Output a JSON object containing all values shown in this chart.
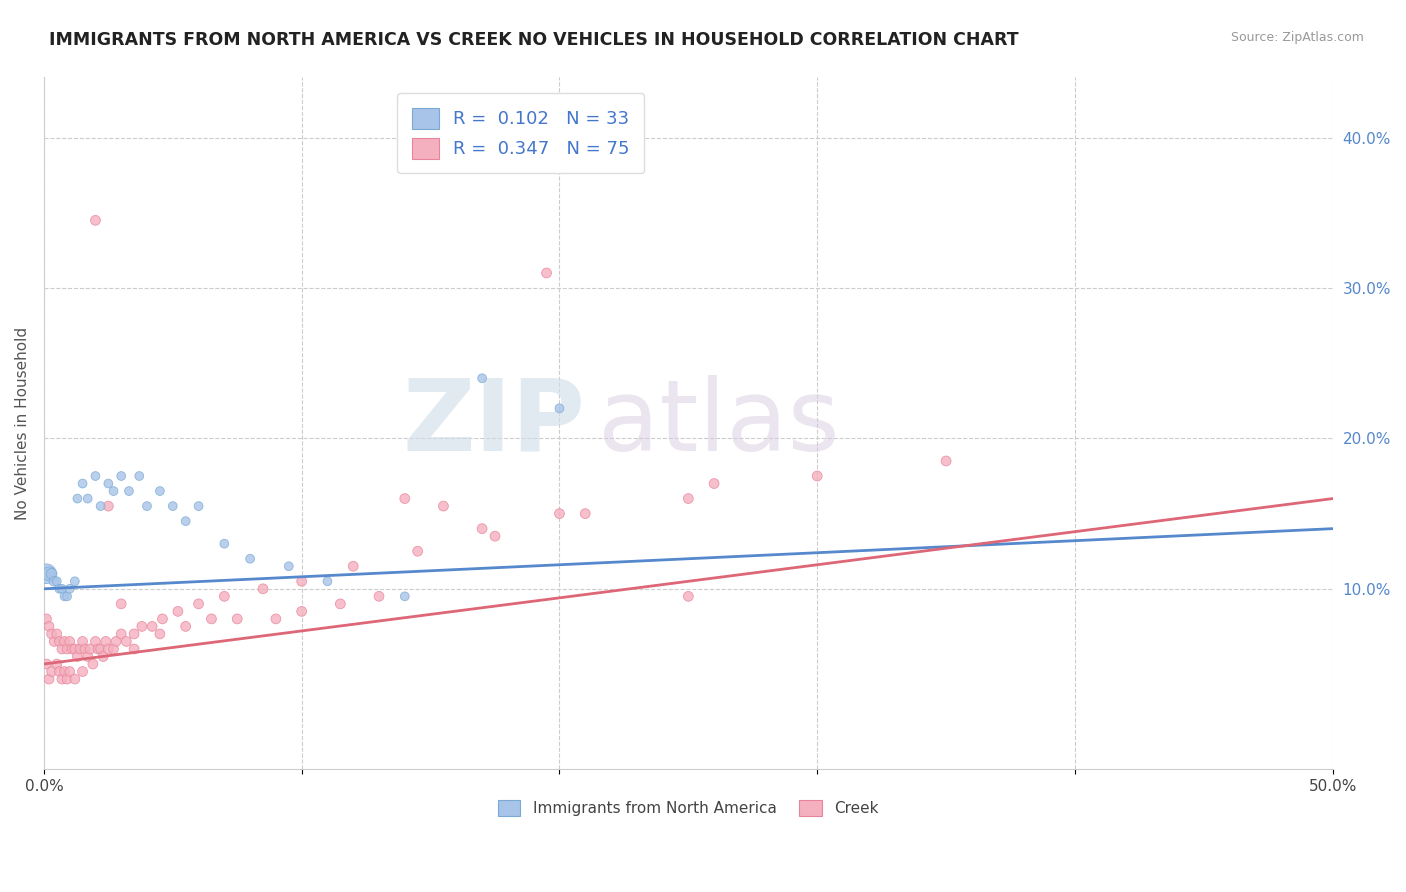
{
  "title": "IMMIGRANTS FROM NORTH AMERICA VS CREEK NO VEHICLES IN HOUSEHOLD CORRELATION CHART",
  "source": "Source: ZipAtlas.com",
  "ylabel": "No Vehicles in Household",
  "xlim": [
    0.0,
    0.5
  ],
  "ylim": [
    -0.02,
    0.44
  ],
  "xticks": [
    0.0,
    0.1,
    0.2,
    0.3,
    0.4,
    0.5
  ],
  "xticklabels": [
    "0.0%",
    "",
    "",
    "",
    "",
    "50.0%"
  ],
  "yticks_left": [],
  "yticks_right": [
    0.1,
    0.2,
    0.3,
    0.4
  ],
  "yticklabels_right": [
    "10.0%",
    "20.0%",
    "30.0%",
    "40.0%"
  ],
  "grid_yticks": [
    0.1,
    0.2,
    0.3,
    0.4
  ],
  "blue_R": "0.102",
  "blue_N": "33",
  "pink_R": "0.347",
  "pink_N": "75",
  "blue_color": "#a8c4e8",
  "pink_color": "#f4b0be",
  "blue_edge_color": "#7aaad4",
  "pink_edge_color": "#e8849a",
  "blue_line_color": "#5588cc",
  "pink_line_color": "#dd6677",
  "watermark_zip": "ZIP",
  "watermark_atlas": "atlas",
  "legend_label_blue": "Immigrants from North America",
  "legend_label_pink": "Creek",
  "blue_scatter_x": [
    0.001,
    0.002,
    0.003,
    0.004,
    0.005,
    0.006,
    0.007,
    0.008,
    0.009,
    0.01,
    0.012,
    0.013,
    0.015,
    0.017,
    0.02,
    0.022,
    0.025,
    0.027,
    0.03,
    0.033,
    0.037,
    0.04,
    0.045,
    0.05,
    0.055,
    0.06,
    0.07,
    0.08,
    0.095,
    0.11,
    0.14,
    0.17,
    0.2
  ],
  "blue_scatter_y": [
    0.11,
    0.11,
    0.11,
    0.105,
    0.105,
    0.1,
    0.1,
    0.095,
    0.095,
    0.1,
    0.105,
    0.16,
    0.17,
    0.16,
    0.175,
    0.155,
    0.17,
    0.165,
    0.175,
    0.165,
    0.175,
    0.155,
    0.165,
    0.155,
    0.145,
    0.155,
    0.13,
    0.12,
    0.115,
    0.105,
    0.095,
    0.24,
    0.22
  ],
  "blue_scatter_sizes": [
    200,
    100,
    60,
    50,
    40,
    40,
    40,
    40,
    40,
    40,
    40,
    40,
    40,
    40,
    40,
    40,
    40,
    40,
    40,
    40,
    40,
    40,
    40,
    40,
    40,
    40,
    40,
    40,
    40,
    40,
    40,
    40,
    40
  ],
  "pink_scatter_x": [
    0.001,
    0.001,
    0.002,
    0.002,
    0.003,
    0.003,
    0.004,
    0.005,
    0.005,
    0.006,
    0.006,
    0.007,
    0.007,
    0.008,
    0.008,
    0.009,
    0.009,
    0.01,
    0.01,
    0.011,
    0.012,
    0.012,
    0.013,
    0.014,
    0.015,
    0.015,
    0.016,
    0.017,
    0.018,
    0.019,
    0.02,
    0.021,
    0.022,
    0.023,
    0.024,
    0.025,
    0.027,
    0.028,
    0.03,
    0.032,
    0.035,
    0.038,
    0.042,
    0.046,
    0.052,
    0.06,
    0.07,
    0.085,
    0.1,
    0.12,
    0.145,
    0.175,
    0.21,
    0.25,
    0.3,
    0.35,
    0.02,
    0.025,
    0.03,
    0.195,
    0.26,
    0.2,
    0.17,
    0.155,
    0.14,
    0.25,
    0.13,
    0.115,
    0.1,
    0.09,
    0.075,
    0.065,
    0.055,
    0.045,
    0.035
  ],
  "pink_scatter_y": [
    0.08,
    0.05,
    0.075,
    0.04,
    0.07,
    0.045,
    0.065,
    0.07,
    0.05,
    0.065,
    0.045,
    0.06,
    0.04,
    0.065,
    0.045,
    0.06,
    0.04,
    0.065,
    0.045,
    0.06,
    0.06,
    0.04,
    0.055,
    0.06,
    0.065,
    0.045,
    0.06,
    0.055,
    0.06,
    0.05,
    0.065,
    0.06,
    0.06,
    0.055,
    0.065,
    0.06,
    0.06,
    0.065,
    0.07,
    0.065,
    0.07,
    0.075,
    0.075,
    0.08,
    0.085,
    0.09,
    0.095,
    0.1,
    0.105,
    0.115,
    0.125,
    0.135,
    0.15,
    0.16,
    0.175,
    0.185,
    0.345,
    0.155,
    0.09,
    0.31,
    0.17,
    0.15,
    0.14,
    0.155,
    0.16,
    0.095,
    0.095,
    0.09,
    0.085,
    0.08,
    0.08,
    0.08,
    0.075,
    0.07,
    0.06
  ],
  "pink_scatter_sizes": [
    50,
    50,
    50,
    50,
    50,
    50,
    50,
    50,
    50,
    50,
    50,
    50,
    50,
    50,
    50,
    50,
    50,
    50,
    50,
    50,
    50,
    50,
    50,
    50,
    50,
    50,
    50,
    50,
    50,
    50,
    50,
    50,
    50,
    50,
    50,
    50,
    50,
    50,
    50,
    50,
    50,
    50,
    50,
    50,
    50,
    50,
    50,
    50,
    50,
    50,
    50,
    50,
    50,
    50,
    50,
    50,
    50,
    50,
    50,
    50,
    50,
    50,
    50,
    50,
    50,
    50,
    50,
    50,
    50,
    50,
    50,
    50,
    50,
    50,
    50
  ],
  "blue_trend": [
    0.0,
    0.5,
    0.1,
    0.14
  ],
  "pink_trend": [
    0.0,
    0.5,
    0.05,
    0.16
  ],
  "grid_color": "#cccccc",
  "bg_color": "#ffffff",
  "right_tick_color": "#5588cc"
}
